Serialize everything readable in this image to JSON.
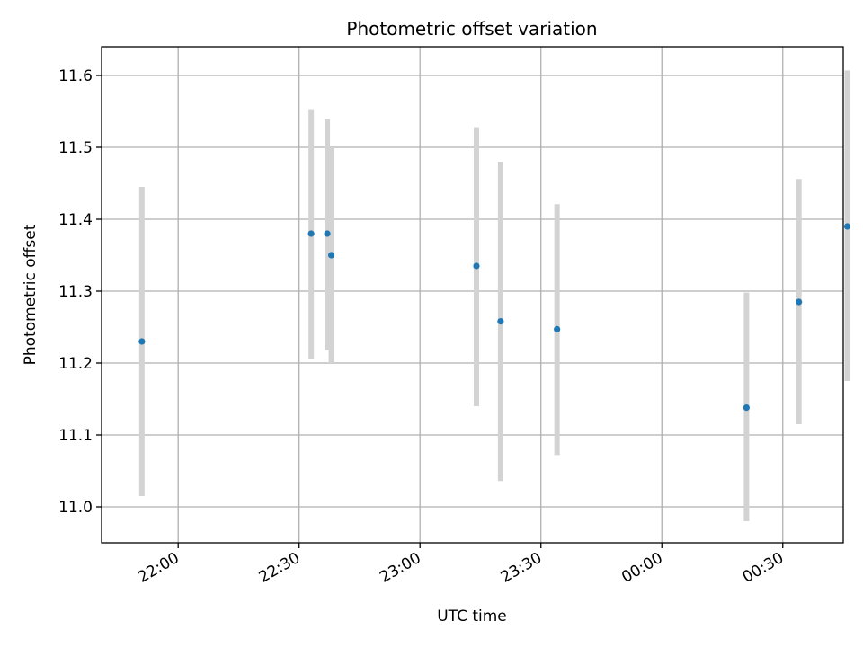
{
  "chart_data": {
    "type": "scatter",
    "title": "Photometric offset variation",
    "xlabel": "UTC time",
    "ylabel": "Photometric offset",
    "x_ticks": [
      "22:00",
      "22:30",
      "23:00",
      "23:30",
      "00:00",
      "00:30"
    ],
    "y_ticks": [
      "11.0",
      "11.1",
      "11.2",
      "11.3",
      "11.4",
      "11.5",
      "11.6"
    ],
    "xlim": [
      "21:41",
      "22:45+2h"
    ],
    "x_axis_start": "21:41",
    "ylim": [
      10.95,
      11.64
    ],
    "grid": true,
    "colors": {
      "point": "#1f77b4",
      "errorbar": "#d3d3d3",
      "grid": "#b0b0b0"
    },
    "series": [
      {
        "points": [
          {
            "x": "21:51",
            "y": 11.23,
            "yerr_low": 11.015,
            "yerr_high": 11.445
          },
          {
            "x": "22:33",
            "y": 11.38,
            "yerr_low": 11.205,
            "yerr_high": 11.553
          },
          {
            "x": "22:37",
            "y": 11.38,
            "yerr_low": 11.218,
            "yerr_high": 11.54
          },
          {
            "x": "22:38",
            "y": 11.35,
            "yerr_low": 11.2,
            "yerr_high": 11.5
          },
          {
            "x": "23:14",
            "y": 11.335,
            "yerr_low": 11.14,
            "yerr_high": 11.528
          },
          {
            "x": "23:20",
            "y": 11.258,
            "yerr_low": 11.036,
            "yerr_high": 11.48
          },
          {
            "x": "23:34",
            "y": 11.247,
            "yerr_low": 11.072,
            "yerr_high": 11.421
          },
          {
            "x": "00:21",
            "y": 11.138,
            "yerr_low": 10.98,
            "yerr_high": 11.298
          },
          {
            "x": "00:34",
            "y": 11.285,
            "yerr_low": 11.115,
            "yerr_high": 11.456
          },
          {
            "x": "00:46",
            "y": 11.39,
            "yerr_low": 11.175,
            "yerr_high": 11.607
          }
        ]
      }
    ]
  }
}
